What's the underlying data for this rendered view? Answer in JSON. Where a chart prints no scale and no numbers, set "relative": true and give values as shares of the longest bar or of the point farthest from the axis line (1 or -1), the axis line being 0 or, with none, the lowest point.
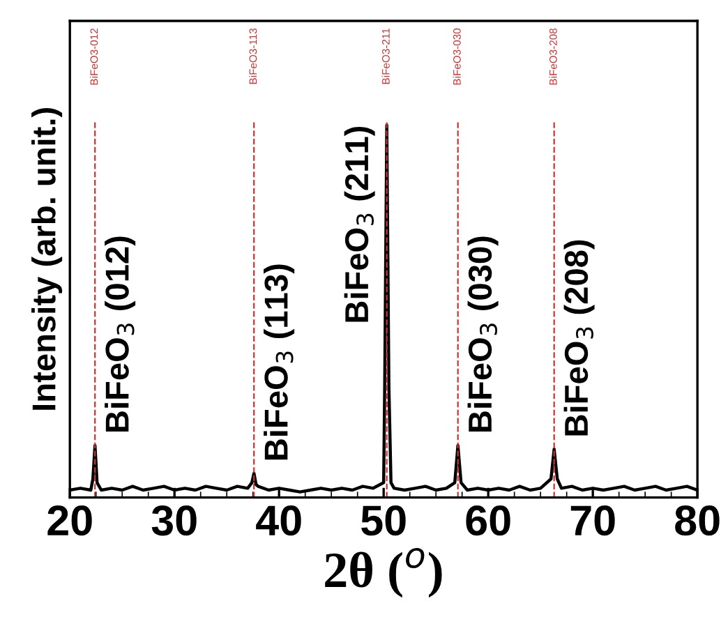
{
  "chart_data": {
    "type": "line",
    "xlabel": "2θ ($^{o}$)",
    "ylabel": "Intensity (arb. unit.)",
    "relative": true,
    "tick_labels": "x",
    "xlim": [
      20,
      80
    ],
    "xticks": [
      20,
      30,
      40,
      50,
      60,
      70,
      80
    ],
    "grid": false,
    "legend": false,
    "marker": "none",
    "line_style": "solid",
    "series": [
      {
        "color": "#000000",
        "x": [
          20,
          21,
          22,
          22.2,
          22.4,
          22.6,
          23,
          24,
          25,
          26,
          27,
          28,
          29,
          30,
          31,
          32,
          33,
          34,
          35,
          36,
          37,
          37.4,
          37.6,
          37.8,
          38,
          39,
          40,
          41,
          42,
          43,
          44,
          45,
          46,
          47,
          48,
          49,
          50,
          50.1,
          50.3,
          50.5,
          50.7,
          51,
          52,
          53,
          54,
          55,
          56,
          56.8,
          57.1,
          57.4,
          58,
          59,
          60,
          61,
          62,
          63,
          64,
          65,
          66,
          66.3,
          66.6,
          67,
          68,
          69,
          70,
          71,
          72,
          73,
          74,
          75,
          76,
          77,
          78,
          79,
          80
        ],
        "values": [
          0.02,
          0.025,
          0.02,
          0.05,
          0.14,
          0.04,
          0.02,
          0.025,
          0.02,
          0.03,
          0.02,
          0.025,
          0.03,
          0.02,
          0.025,
          0.02,
          0.03,
          0.025,
          0.02,
          0.03,
          0.025,
          0.04,
          0.065,
          0.035,
          0.03,
          0.02,
          0.025,
          0.02,
          0.015,
          0.02,
          0.025,
          0.02,
          0.025,
          0.02,
          0.03,
          0.025,
          0.04,
          0.3,
          1.0,
          0.3,
          0.04,
          0.025,
          0.02,
          0.025,
          0.03,
          0.02,
          0.025,
          0.04,
          0.14,
          0.04,
          0.02,
          0.025,
          0.02,
          0.025,
          0.02,
          0.03,
          0.02,
          0.025,
          0.05,
          0.13,
          0.05,
          0.025,
          0.03,
          0.02,
          0.025,
          0.02,
          0.025,
          0.03,
          0.02,
          0.025,
          0.03,
          0.02,
          0.025,
          0.03,
          0.02
        ]
      }
    ],
    "ref_lines": [
      {
        "axis": "x",
        "value": 22.4,
        "label": "BiFeO3-012",
        "color": "#cc3333",
        "line_style": "dashed"
      },
      {
        "axis": "x",
        "value": 37.6,
        "label": "BiFeO3-113",
        "color": "#cc3333",
        "line_style": "dashed"
      },
      {
        "axis": "x",
        "value": 50.3,
        "label": "BiFeO3-211",
        "color": "#cc3333",
        "line_style": "dashed"
      },
      {
        "axis": "x",
        "value": 57.1,
        "label": "BiFeO3-030",
        "color": "#cc3333",
        "line_style": "dashed"
      },
      {
        "axis": "x",
        "value": 66.3,
        "label": "BiFeO3-208",
        "color": "#cc3333",
        "line_style": "dashed"
      }
    ],
    "annotations": [
      {
        "text": "BiFeO$_{3}$ (012)",
        "x": 22.4,
        "y": 0.14
      },
      {
        "text": "BiFeO$_{3}$ (113)",
        "x": 37.6,
        "y": 0.065
      },
      {
        "text": "BiFeO$_{3}$ (211)",
        "x": 50.3,
        "y": 1.0
      },
      {
        "text": "BiFeO$_{3}$ (030)",
        "x": 57.1,
        "y": 0.14
      },
      {
        "text": "BiFeO$_{3}$ (208)",
        "x": 66.3,
        "y": 0.13
      }
    ]
  }
}
